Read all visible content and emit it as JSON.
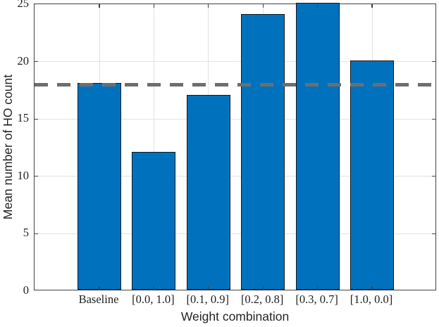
{
  "chart_data": {
    "type": "bar",
    "title": "",
    "xlabel": "Weight combination",
    "ylabel": "Mean number of HO count",
    "categories": [
      "Baseline",
      "[0.0, 1.0]",
      "[0.1, 0.9]",
      "[0.2, 0.8]",
      "[0.3, 0.7]",
      "[1.0, 0.0]"
    ],
    "values": [
      18,
      12,
      17,
      24,
      25,
      20
    ],
    "ylim": [
      0,
      25
    ],
    "yticks": [
      0,
      5,
      10,
      15,
      20,
      25
    ],
    "grid": "on",
    "legend": "none",
    "reference_line": {
      "value": 18,
      "style": "dashed",
      "color": "#6e6e6e"
    },
    "colors": {
      "bar_fill": "#0072BD",
      "bar_edge": "#101820",
      "axis": "#434343",
      "grid": "#e2e2e2",
      "tick_text": "#1f1f1f",
      "label_text": "#262626",
      "background": "#ffffff"
    }
  }
}
